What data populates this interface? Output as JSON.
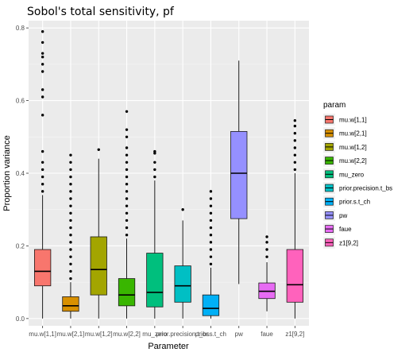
{
  "chart_data": {
    "type": "boxplot",
    "title": "Sobol's total sensitivity,  pf",
    "xlabel": "Parameter",
    "ylabel": "Proportion variance",
    "ylim": [
      -0.02,
      0.82
    ],
    "yticks": [
      0.0,
      0.2,
      0.4,
      0.6,
      0.8
    ],
    "yticklabels": [
      "0.0",
      "0.2",
      "0.4",
      "0.6",
      "0.8"
    ],
    "grid": true,
    "legend_title": "param",
    "legend_position": "right",
    "categories": [
      "mu.w[1,1]",
      "mu.w[2,1]",
      "mu.w[1,2]",
      "mu.w[2,2]",
      "mu_zero",
      "prior.precision.t_bs",
      "prior.s.t_ch",
      "pw",
      "faue",
      "z1[9,2]"
    ],
    "series": [
      {
        "name": "mu.w[1,1]",
        "color": "#F8766D",
        "min": 0.0,
        "q1": 0.09,
        "median": 0.13,
        "q3": 0.19,
        "max": 0.34,
        "outliers": [
          0.35,
          0.37,
          0.39,
          0.41,
          0.43,
          0.46,
          0.56,
          0.61,
          0.63,
          0.68,
          0.7,
          0.72,
          0.73,
          0.76,
          0.79
        ]
      },
      {
        "name": "mu.w[2,1]",
        "color": "#D89000",
        "min": 0.0,
        "q1": 0.02,
        "median": 0.035,
        "q3": 0.06,
        "max": 0.1,
        "outliers": [
          0.11,
          0.13,
          0.15,
          0.17,
          0.19,
          0.21,
          0.23,
          0.25,
          0.27,
          0.29,
          0.31,
          0.33,
          0.35,
          0.37,
          0.39,
          0.41,
          0.43,
          0.45
        ]
      },
      {
        "name": "mu.w[1,2]",
        "color": "#A3A500",
        "min": 0.0,
        "q1": 0.065,
        "median": 0.135,
        "q3": 0.225,
        "max": 0.44,
        "outliers": [
          0.465
        ]
      },
      {
        "name": "mu.w[2,2]",
        "color": "#39B600",
        "min": 0.0,
        "q1": 0.035,
        "median": 0.065,
        "q3": 0.11,
        "max": 0.22,
        "outliers": [
          0.23,
          0.25,
          0.27,
          0.29,
          0.31,
          0.33,
          0.35,
          0.37,
          0.39,
          0.41,
          0.43,
          0.45,
          0.47,
          0.5,
          0.52,
          0.57
        ]
      },
      {
        "name": "mu_zero",
        "color": "#00BF7D",
        "min": 0.0,
        "q1": 0.032,
        "median": 0.072,
        "q3": 0.18,
        "max": 0.38,
        "outliers": [
          0.39,
          0.41,
          0.43,
          0.455,
          0.46
        ]
      },
      {
        "name": "prior.precision.t_bs",
        "color": "#00BFC4",
        "min": 0.0,
        "q1": 0.045,
        "median": 0.09,
        "q3": 0.145,
        "max": 0.27,
        "outliers": [
          0.3
        ]
      },
      {
        "name": "prior.s.t_ch",
        "color": "#00B0F6",
        "min": 0.0,
        "q1": 0.008,
        "median": 0.028,
        "q3": 0.065,
        "max": 0.14,
        "outliers": [
          0.15,
          0.17,
          0.19,
          0.21,
          0.23,
          0.25,
          0.27,
          0.29,
          0.31,
          0.33,
          0.35
        ]
      },
      {
        "name": "pw",
        "color": "#9590FF",
        "min": 0.095,
        "q1": 0.275,
        "median": 0.4,
        "q3": 0.515,
        "max": 0.71,
        "outliers": []
      },
      {
        "name": "faue",
        "color": "#E76BF3",
        "min": 0.02,
        "q1": 0.055,
        "median": 0.075,
        "q3": 0.098,
        "max": 0.155,
        "outliers": [
          0.17,
          0.19,
          0.21,
          0.225
        ]
      },
      {
        "name": "z1[9,2]",
        "color": "#FF62BC",
        "min": 0.0,
        "q1": 0.045,
        "median": 0.093,
        "q3": 0.19,
        "max": 0.4,
        "outliers": [
          0.41,
          0.43,
          0.45,
          0.47,
          0.49,
          0.51,
          0.53,
          0.545
        ]
      }
    ]
  }
}
